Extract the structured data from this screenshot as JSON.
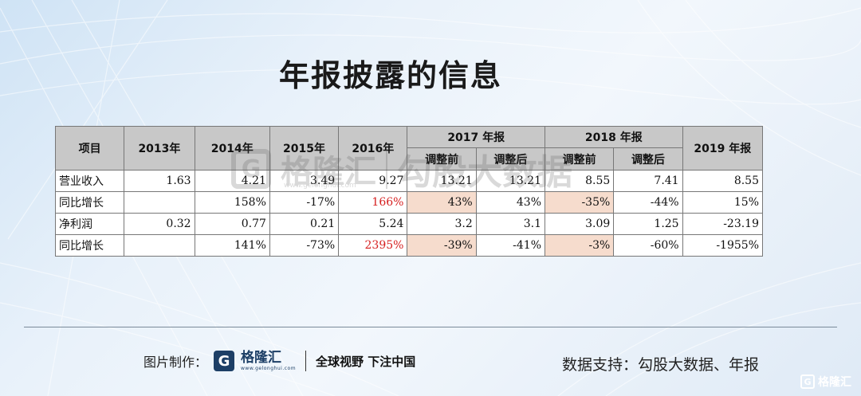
{
  "title": "年报披露的信息",
  "table": {
    "header_item": "项目",
    "years": [
      "2013年",
      "2014年",
      "2015年",
      "2016年"
    ],
    "group_2017": "2017 年报",
    "group_2018": "2018 年报",
    "col_2019": "2019 年报",
    "sub_before": "调整前",
    "sub_after": "调整后",
    "rows": [
      {
        "label": "营业收入",
        "cells": [
          "1.63",
          "4.21",
          "3.49",
          "9.27",
          "13.21",
          "13.21",
          "8.55",
          "7.41",
          "8.55"
        ]
      },
      {
        "label": "同比增长",
        "cells": [
          "",
          "158%",
          "-17%",
          "166%",
          "43%",
          "43%",
          "-35%",
          "-44%",
          "15%"
        ]
      },
      {
        "label": "净利润",
        "cells": [
          "0.32",
          "0.77",
          "0.21",
          "5.24",
          "3.2",
          "3.1",
          "3.09",
          "1.25",
          "-23.19"
        ]
      },
      {
        "label": "同比增长",
        "cells": [
          "",
          "141%",
          "-73%",
          "2395%",
          "-39%",
          "-41%",
          "-3%",
          "-60%",
          "-1955%"
        ]
      }
    ]
  },
  "watermark": {
    "logo_text": "格隆汇",
    "domain": "www.gelonghui.com",
    "source_text": "勾股大数据"
  },
  "footer": {
    "made_by_label": "图片制作：",
    "logo_name": "格隆汇",
    "logo_domain": "www.gelonghui.com",
    "slogan": "全球视野 下注中国",
    "data_support": "数据支持：勾股大数据、年报"
  },
  "corner_logo": "格隆汇",
  "colors": {
    "highlight_red": "#d61f1f",
    "pink_cell": "#f6dccd",
    "header_gray": "#c8c8c8",
    "brand_blue": "#1d3f66"
  }
}
